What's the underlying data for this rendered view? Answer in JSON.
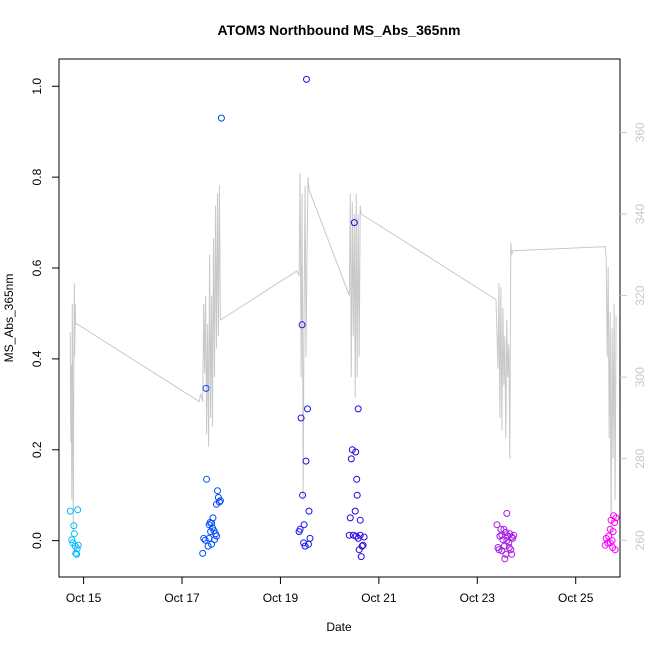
{
  "chart_data": {
    "type": "scatter",
    "title": "ATOM3 Northbound MS_Abs_365nm",
    "xlabel": "Date",
    "ylabel": "MS_Abs_365nm",
    "x_axis": {
      "unit": "days since Oct 14 00:00",
      "range": [
        14.5,
        25.9
      ],
      "ticks": [
        {
          "value": 15,
          "label": "Oct 15"
        },
        {
          "value": 17,
          "label": "Oct 17"
        },
        {
          "value": 19,
          "label": "Oct 19"
        },
        {
          "value": 21,
          "label": "Oct 21"
        },
        {
          "value": 23,
          "label": "Oct 23"
        },
        {
          "value": 25,
          "label": "Oct 25"
        }
      ]
    },
    "y_axis": {
      "range": [
        -0.08,
        1.06
      ],
      "ticks": [
        "0.0",
        "0.2",
        "0.4",
        "0.6",
        "0.8",
        "1.0"
      ]
    },
    "y2_axis": {
      "range": [
        251,
        378
      ],
      "ticks": [
        "260",
        "280",
        "300",
        "320",
        "340",
        "360"
      ],
      "color": "#c8c8c8"
    },
    "series": [
      {
        "name": "",
        "marker": "open-circle",
        "color_scale": [
          "#00bfff",
          "#0050ff",
          "#2000e0",
          "#9020e0",
          "#ff00ff"
        ],
        "points": [
          [
            14.73,
            0.065
          ],
          [
            14.76,
            0.002
          ],
          [
            14.78,
            -0.005
          ],
          [
            14.8,
            0.033
          ],
          [
            14.81,
            0.015
          ],
          [
            14.83,
            -0.012
          ],
          [
            14.84,
            -0.028
          ],
          [
            14.86,
            -0.03
          ],
          [
            14.88,
            0.068
          ],
          [
            14.89,
            -0.01
          ],
          [
            14.87,
            -0.018
          ],
          [
            17.42,
            -0.028
          ],
          [
            17.44,
            0.005
          ],
          [
            17.47,
            0.001
          ],
          [
            17.49,
            0.335
          ],
          [
            17.5,
            0.135
          ],
          [
            17.53,
            -0.012
          ],
          [
            17.55,
            0.035
          ],
          [
            17.57,
            0.04
          ],
          [
            17.58,
            0.02
          ],
          [
            17.6,
            -0.008
          ],
          [
            17.62,
            0.028
          ],
          [
            17.63,
            0.05
          ],
          [
            17.66,
            0.002
          ],
          [
            17.68,
            0.015
          ],
          [
            17.7,
            0.08
          ],
          [
            17.72,
            0.11
          ],
          [
            17.74,
            0.095
          ],
          [
            17.76,
            0.085
          ],
          [
            17.78,
            0.088
          ],
          [
            17.8,
            0.93
          ],
          [
            17.55,
            0.005
          ],
          [
            17.6,
            0.038
          ],
          [
            17.65,
            0.022
          ],
          [
            17.7,
            0.01
          ],
          [
            19.38,
            0.02
          ],
          [
            19.4,
            0.025
          ],
          [
            19.42,
            0.27
          ],
          [
            19.44,
            0.475
          ],
          [
            19.45,
            0.1
          ],
          [
            19.47,
            -0.005
          ],
          [
            19.48,
            0.035
          ],
          [
            19.5,
            -0.012
          ],
          [
            19.52,
            0.175
          ],
          [
            19.53,
            1.015
          ],
          [
            19.55,
            0.29
          ],
          [
            19.57,
            -0.008
          ],
          [
            19.58,
            0.065
          ],
          [
            19.6,
            0.005
          ],
          [
            20.4,
            0.012
          ],
          [
            20.42,
            0.05
          ],
          [
            20.44,
            0.18
          ],
          [
            20.46,
            0.2
          ],
          [
            20.48,
            0.012
          ],
          [
            20.5,
            0.7
          ],
          [
            20.52,
            0.065
          ],
          [
            20.53,
            0.195
          ],
          [
            20.54,
            0.01
          ],
          [
            20.55,
            0.135
          ],
          [
            20.56,
            0.1
          ],
          [
            20.58,
            0.29
          ],
          [
            20.6,
            -0.02
          ],
          [
            20.62,
            0.012
          ],
          [
            20.64,
            -0.035
          ],
          [
            20.66,
            -0.012
          ],
          [
            20.68,
            -0.01
          ],
          [
            20.7,
            0.008
          ],
          [
            20.58,
            0.005
          ],
          [
            20.62,
            0.045
          ],
          [
            23.4,
            0.035
          ],
          [
            23.42,
            -0.015
          ],
          [
            23.44,
            -0.02
          ],
          [
            23.46,
            0.01
          ],
          [
            23.48,
            0.025
          ],
          [
            23.5,
            -0.022
          ],
          [
            23.52,
            0.002
          ],
          [
            23.54,
            0.025
          ],
          [
            23.56,
            -0.04
          ],
          [
            23.58,
            -0.03
          ],
          [
            23.6,
            0.06
          ],
          [
            23.62,
            0.01
          ],
          [
            23.64,
            -0.005
          ],
          [
            23.66,
            0.015
          ],
          [
            23.68,
            -0.02
          ],
          [
            23.7,
            -0.03
          ],
          [
            23.72,
            0.005
          ],
          [
            23.74,
            0.012
          ],
          [
            23.5,
            0.012
          ],
          [
            23.55,
            -0.012
          ],
          [
            23.6,
            0.0
          ],
          [
            23.65,
            -0.015
          ],
          [
            23.7,
            0.008
          ],
          [
            23.58,
            0.018
          ],
          [
            25.6,
            -0.01
          ],
          [
            25.62,
            0.005
          ],
          [
            25.65,
            -0.005
          ],
          [
            25.67,
            0.01
          ],
          [
            25.7,
            0.025
          ],
          [
            25.72,
            0.045
          ],
          [
            25.74,
            0.0
          ],
          [
            25.75,
            -0.015
          ],
          [
            25.77,
            0.055
          ],
          [
            25.79,
            0.04
          ],
          [
            25.8,
            -0.02
          ],
          [
            25.82,
            0.05
          ],
          [
            25.7,
            -0.005
          ],
          [
            25.76,
            0.02
          ]
        ]
      },
      {
        "name": "",
        "type": "line",
        "axis": "right",
        "color": "#c8c8c8",
        "points": [
          [
            14.73,
            311
          ],
          [
            14.74,
            284
          ],
          [
            14.75,
            303
          ],
          [
            14.76,
            270
          ],
          [
            14.77,
            318
          ],
          [
            14.78,
            292
          ],
          [
            14.79,
            262
          ],
          [
            14.8,
            300
          ],
          [
            14.81,
            323
          ],
          [
            14.82,
            305
          ],
          [
            14.83,
            318
          ],
          [
            14.84,
            313
          ],
          [
            14.87,
            313
          ],
          [
            17.35,
            294
          ],
          [
            17.38,
            296
          ],
          [
            17.42,
            294
          ],
          [
            17.44,
            318
          ],
          [
            17.46,
            301
          ],
          [
            17.48,
            320
          ],
          [
            17.5,
            286
          ],
          [
            17.52,
            313
          ],
          [
            17.54,
            283
          ],
          [
            17.56,
            330
          ],
          [
            17.58,
            290
          ],
          [
            17.6,
            320
          ],
          [
            17.62,
            288
          ],
          [
            17.64,
            334
          ],
          [
            17.66,
            300
          ],
          [
            17.68,
            342
          ],
          [
            17.7,
            307
          ],
          [
            17.72,
            345
          ],
          [
            17.74,
            310
          ],
          [
            17.76,
            347
          ],
          [
            17.78,
            314
          ],
          [
            19.33,
            326
          ],
          [
            19.38,
            325
          ],
          [
            19.4,
            350
          ],
          [
            19.42,
            300
          ],
          [
            19.44,
            345
          ],
          [
            19.46,
            270
          ],
          [
            19.48,
            318
          ],
          [
            19.5,
            347
          ],
          [
            19.52,
            305
          ],
          [
            19.54,
            330
          ],
          [
            19.56,
            349
          ],
          [
            19.58,
            346
          ],
          [
            20.4,
            320
          ],
          [
            20.42,
            345
          ],
          [
            20.44,
            300
          ],
          [
            20.46,
            343
          ],
          [
            20.48,
            310
          ],
          [
            20.5,
            340
          ],
          [
            20.52,
            295
          ],
          [
            20.54,
            345
          ],
          [
            20.56,
            300
          ],
          [
            20.58,
            340
          ],
          [
            20.6,
            305
          ],
          [
            20.62,
            342
          ],
          [
            20.64,
            340
          ],
          [
            23.38,
            319
          ],
          [
            23.42,
            302
          ],
          [
            23.44,
            323
          ],
          [
            23.46,
            290
          ],
          [
            23.48,
            322
          ],
          [
            23.5,
            287
          ],
          [
            23.52,
            317
          ],
          [
            23.54,
            298
          ],
          [
            23.56,
            310
          ],
          [
            23.58,
            285
          ],
          [
            23.6,
            314
          ],
          [
            23.62,
            300
          ],
          [
            23.64,
            308
          ],
          [
            23.66,
            280
          ],
          [
            23.68,
            333
          ],
          [
            23.7,
            330
          ],
          [
            23.72,
            331
          ],
          [
            25.6,
            332
          ],
          [
            25.62,
            329
          ],
          [
            25.64,
            305
          ],
          [
            25.66,
            327
          ],
          [
            25.68,
            285
          ],
          [
            25.7,
            316
          ],
          [
            25.72,
            262
          ],
          [
            25.74,
            312
          ],
          [
            25.76,
            280
          ],
          [
            25.78,
            318
          ],
          [
            25.8,
            270
          ],
          [
            25.82,
            315
          ]
        ]
      }
    ],
    "grid": false,
    "legend": "none"
  }
}
